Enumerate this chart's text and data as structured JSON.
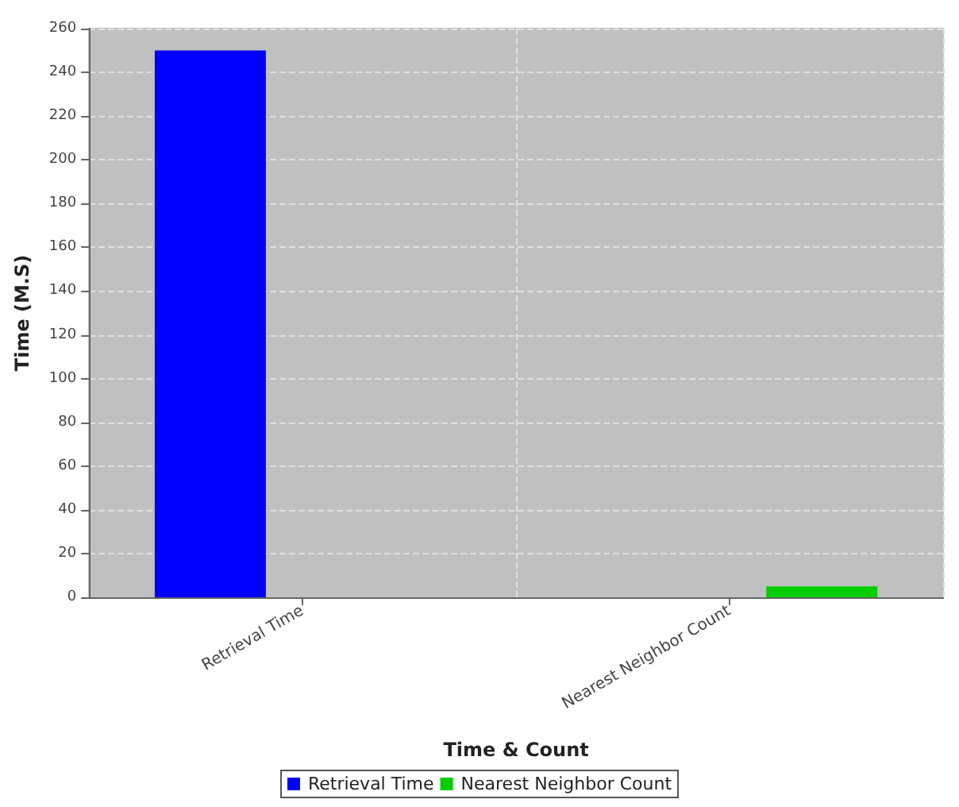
{
  "chart_data": {
    "type": "bar",
    "xlabel": "Time & Count",
    "ylabel": "Time (M.S)",
    "categories": [
      "Retrieval Time",
      "Nearest Neighbor Count"
    ],
    "series": [
      {
        "name": "Retrieval Time",
        "color": "#0000ff",
        "values": [
          250,
          null
        ]
      },
      {
        "name": "Nearest Neighbor Count",
        "color": "#00cc00",
        "values": [
          null,
          5
        ]
      }
    ],
    "ylim": [
      0,
      260
    ],
    "yticks": [
      0,
      20,
      40,
      60,
      80,
      100,
      120,
      140,
      160,
      180,
      200,
      220,
      240,
      260
    ],
    "grid": true,
    "legend": "bottom"
  }
}
